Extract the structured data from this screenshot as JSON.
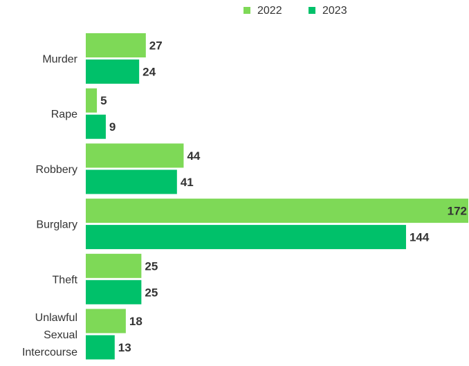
{
  "chart_data": {
    "type": "bar",
    "orientation": "horizontal",
    "categories": [
      "Murder",
      "Rape",
      "Robbery",
      "Burglary",
      "Theft",
      "Unlawful Sexual Intercourse"
    ],
    "category_lines": [
      [
        "Murder"
      ],
      [
        "Rape"
      ],
      [
        "Robbery"
      ],
      [
        "Burglary"
      ],
      [
        "Theft"
      ],
      [
        "Unlawful",
        "Sexual",
        "Intercourse"
      ]
    ],
    "series": [
      {
        "name": "2022",
        "color": "#7ed957",
        "values": [
          27,
          5,
          44,
          172,
          25,
          18
        ]
      },
      {
        "name": "2023",
        "color": "#00c16a",
        "values": [
          24,
          9,
          41,
          144,
          25,
          13
        ]
      }
    ],
    "xlim": [
      0,
      172
    ],
    "legend_position": "top-right",
    "grid": false
  }
}
